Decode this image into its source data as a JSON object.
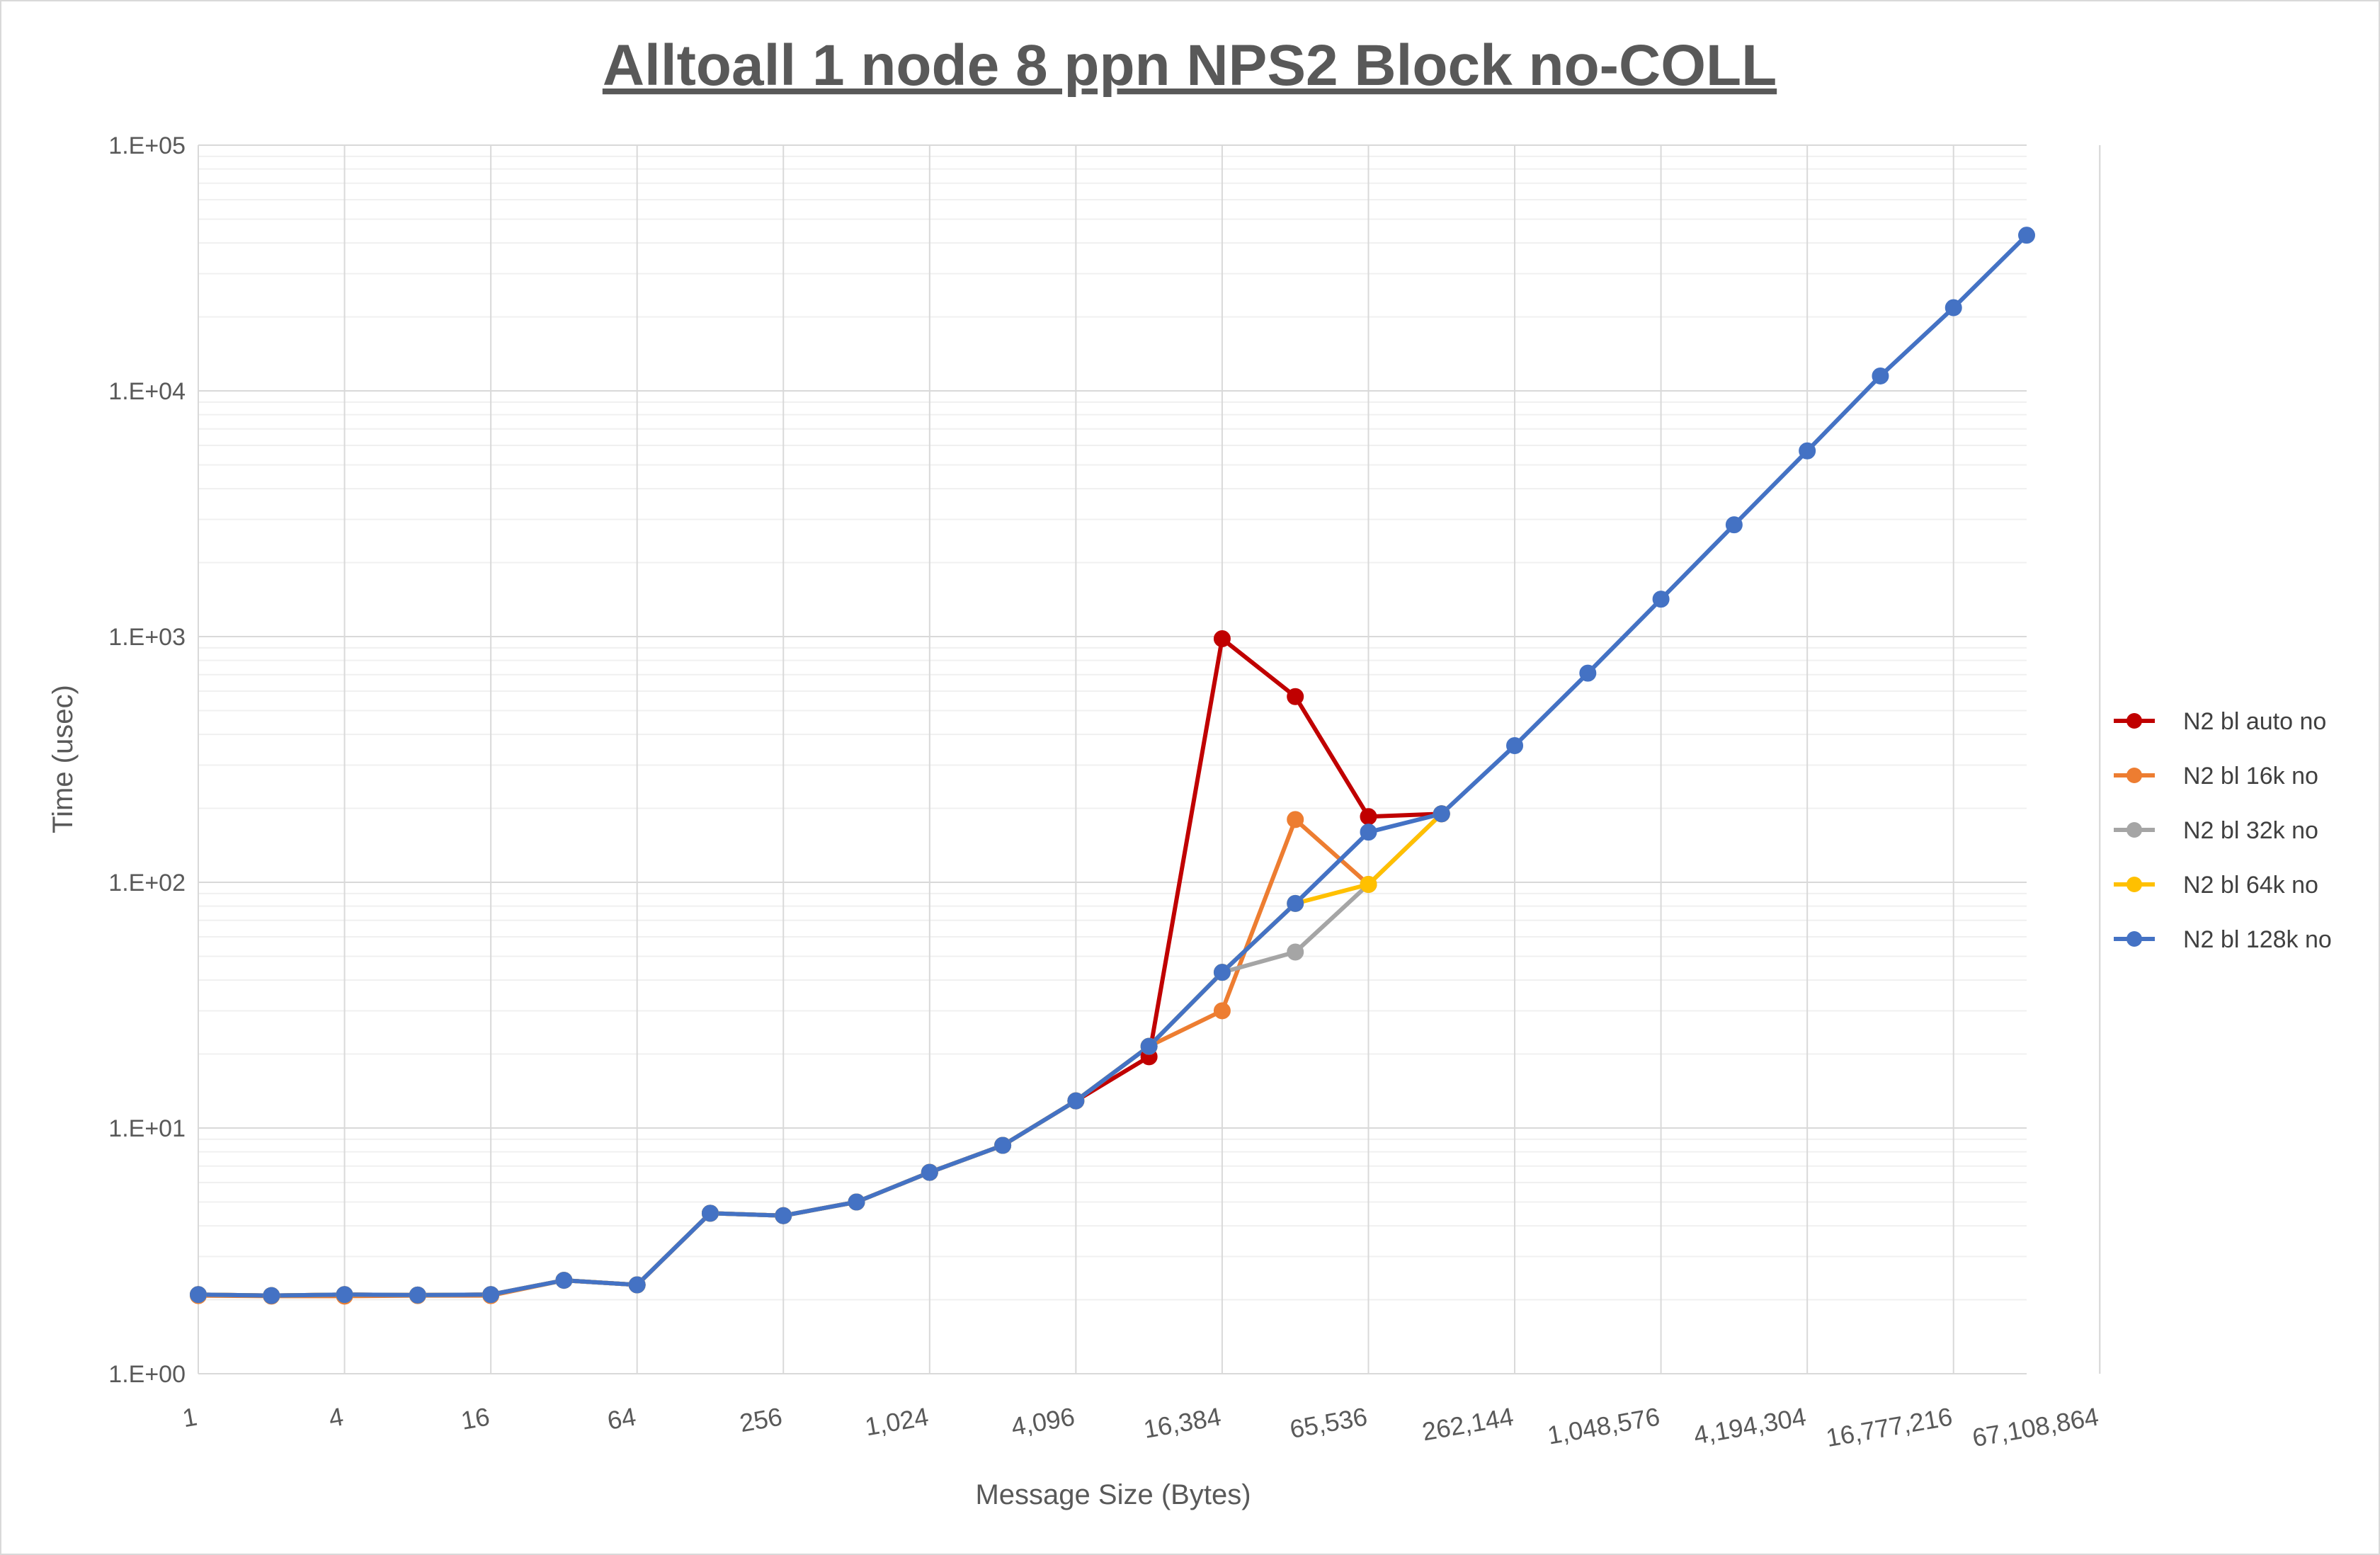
{
  "chart_data": {
    "type": "line",
    "title": "Alltoall 1 node 8 ppn NPS2 Block no-COLL",
    "xlabel": "Message Size (Bytes)",
    "ylabel": "Time (usec)",
    "x_scale": "log2",
    "y_scale": "log10",
    "ylim": [
      1,
      100000
    ],
    "grid": "major and minor",
    "legend_position": "right",
    "y_tick_labels": [
      "1.E+00",
      "1.E+01",
      "1.E+02",
      "1.E+03",
      "1.E+04",
      "1.E+05"
    ],
    "x_tick_labels": [
      "1",
      "4",
      "16",
      "64",
      "256",
      "1,024",
      "4,096",
      "16,384",
      "65,536",
      "262,144",
      "1,048,576",
      "4,194,304",
      "16,777,216",
      "67,108,864"
    ],
    "x": [
      1,
      2,
      4,
      8,
      16,
      32,
      64,
      128,
      256,
      512,
      1024,
      2048,
      4096,
      8192,
      16384,
      32768,
      65536,
      131072,
      262144,
      524288,
      1048576,
      2097152,
      4194304,
      8388608,
      16777216,
      33554432
    ],
    "series": [
      {
        "name": "N2 bl auto no",
        "color": "#c00000",
        "values": [
          2.1,
          2.08,
          2.1,
          2.09,
          2.1,
          2.4,
          2.3,
          4.5,
          4.4,
          5.0,
          6.6,
          8.5,
          12.9,
          19.5,
          980,
          570,
          185,
          190,
          null,
          null,
          null,
          null,
          null,
          null,
          null,
          null
        ]
      },
      {
        "name": "N2 bl 16k no",
        "color": "#ed7d31",
        "values": [
          2.08,
          2.07,
          2.07,
          2.08,
          2.08,
          2.4,
          2.3,
          4.5,
          4.4,
          5.0,
          6.6,
          8.5,
          12.9,
          21.5,
          30,
          180,
          98,
          190,
          null,
          null,
          null,
          null,
          null,
          null,
          null,
          null
        ]
      },
      {
        "name": "N2 bl 32k no",
        "color": "#a5a5a5",
        "values": [
          2.1,
          2.08,
          2.1,
          2.09,
          2.1,
          2.4,
          2.3,
          4.5,
          4.4,
          5.0,
          6.6,
          8.5,
          12.9,
          21.5,
          43,
          52,
          98,
          190,
          null,
          null,
          null,
          null,
          null,
          null,
          null,
          null
        ]
      },
      {
        "name": "N2 bl 64k no",
        "color": "#ffc000",
        "values": [
          2.1,
          2.08,
          2.1,
          2.09,
          2.1,
          2.4,
          2.3,
          4.5,
          4.4,
          5.0,
          6.6,
          8.5,
          12.9,
          21.5,
          43,
          82,
          98,
          190,
          null,
          null,
          null,
          null,
          null,
          null,
          null,
          null
        ]
      },
      {
        "name": "N2 bl 128k no",
        "color": "#4472c4",
        "values": [
          2.1,
          2.08,
          2.1,
          2.09,
          2.1,
          2.4,
          2.3,
          4.5,
          4.4,
          5.0,
          6.6,
          8.5,
          12.9,
          21.5,
          43,
          82,
          160,
          190,
          360,
          710,
          1420,
          2850,
          5700,
          11500,
          21800,
          43000
        ]
      }
    ]
  }
}
